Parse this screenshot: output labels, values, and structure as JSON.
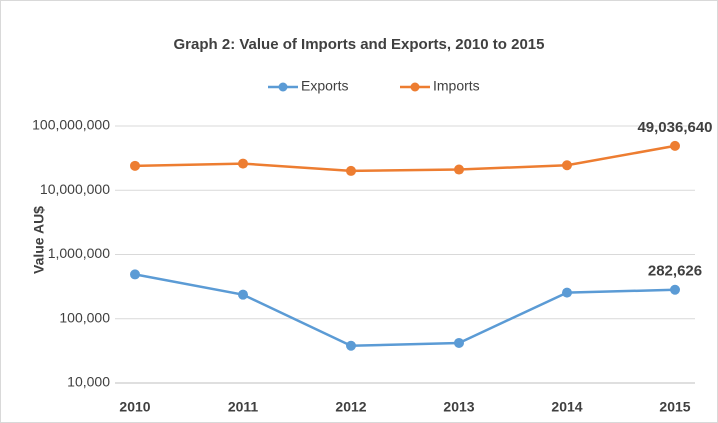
{
  "chart_data": {
    "type": "line",
    "title": "Graph 2: Value of Imports and Exports, 2010 to 2015",
    "y_label": "Value AU$",
    "categories": [
      "2010",
      "2011",
      "2012",
      "2013",
      "2014",
      "2015"
    ],
    "series": [
      {
        "name": "Exports",
        "color": "#5b9bd5",
        "values": [
          490000,
          237000,
          38000,
          42000,
          255000,
          282626
        ],
        "value_labels": [
          null,
          null,
          null,
          null,
          null,
          "282,626"
        ]
      },
      {
        "name": "Imports",
        "color": "#ed7d31",
        "values": [
          24000000,
          26000000,
          20000000,
          21000000,
          24500000,
          49036640
        ],
        "value_labels": [
          null,
          null,
          null,
          null,
          null,
          "49,036,640"
        ]
      }
    ],
    "log_scale": true,
    "ylim": [
      10000,
      100000000
    ],
    "yticks": [
      {
        "value": 10000,
        "label": "10,000"
      },
      {
        "value": 100000,
        "label": "100,000"
      },
      {
        "value": 1000000,
        "label": "1,000,000"
      },
      {
        "value": 10000000,
        "label": "10,000,000"
      },
      {
        "value": 100000000,
        "label": "100,000,000"
      }
    ],
    "grid": true,
    "legend": "top"
  }
}
